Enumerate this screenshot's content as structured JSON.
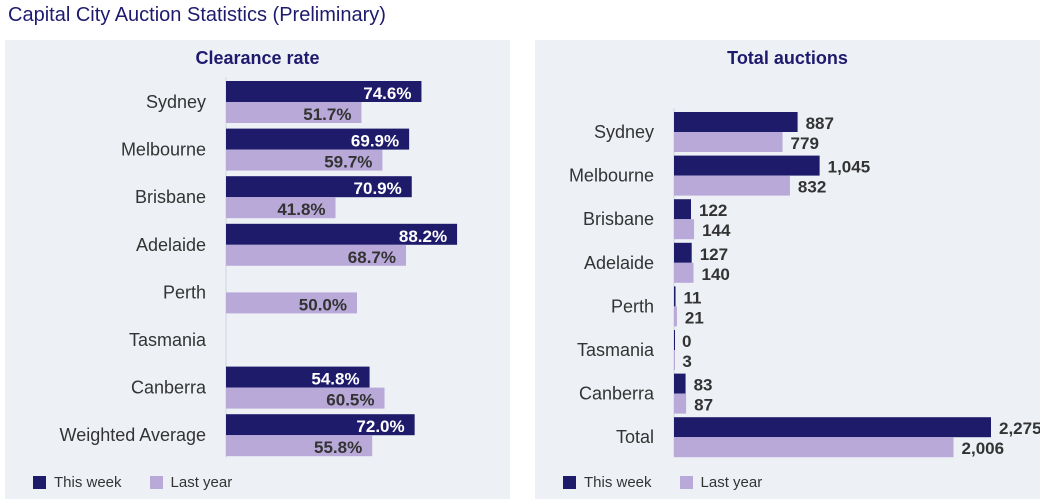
{
  "page": {
    "title": "Capital City Auction Statistics (Preliminary)"
  },
  "colors": {
    "this_week": "#1f1b6b",
    "last_year": "#b9a9d9",
    "panel_bg": "#edf1f6",
    "title": "#1e1b6e"
  },
  "legend": {
    "this_week": "This week",
    "last_year": "Last year"
  },
  "chart_data": [
    {
      "type": "bar",
      "orientation": "horizontal",
      "title": "Clearance rate",
      "categories": [
        "Sydney",
        "Melbourne",
        "Brisbane",
        "Adelaide",
        "Perth",
        "Tasmania",
        "Canberra",
        "Weighted Average"
      ],
      "series": [
        {
          "name": "This week",
          "values": [
            74.6,
            69.9,
            70.9,
            88.2,
            null,
            null,
            54.8,
            72.0
          ],
          "labels": [
            "74.6%",
            "69.9%",
            "70.9%",
            "88.2%",
            "",
            "",
            "54.8%",
            "72.0%"
          ]
        },
        {
          "name": "Last year",
          "values": [
            51.7,
            59.7,
            41.8,
            68.7,
            50.0,
            null,
            60.5,
            55.8
          ],
          "labels": [
            "51.7%",
            "59.7%",
            "41.8%",
            "68.7%",
            "50.0%",
            "",
            "60.5%",
            "55.8%"
          ]
        }
      ],
      "xlim": [
        0,
        100
      ],
      "label_position": "inside-end",
      "grid": false,
      "legend_position": "bottom-left"
    },
    {
      "type": "bar",
      "orientation": "horizontal",
      "title": "Total auctions",
      "categories": [
        "Sydney",
        "Melbourne",
        "Brisbane",
        "Adelaide",
        "Perth",
        "Tasmania",
        "Canberra",
        "Total"
      ],
      "series": [
        {
          "name": "This week",
          "values": [
            887,
            1045,
            122,
            127,
            11,
            0,
            83,
            2275
          ],
          "labels": [
            "887",
            "1,045",
            "122",
            "127",
            "11",
            "0",
            "83",
            "2,275"
          ]
        },
        {
          "name": "Last year",
          "values": [
            779,
            832,
            144,
            140,
            21,
            3,
            87,
            2006
          ],
          "labels": [
            "779",
            "832",
            "144",
            "140",
            "21",
            "3",
            "87",
            "2,006"
          ]
        }
      ],
      "xlim": [
        0,
        2275
      ],
      "label_position": "outside-end",
      "grid": false,
      "legend_position": "bottom-left"
    }
  ]
}
